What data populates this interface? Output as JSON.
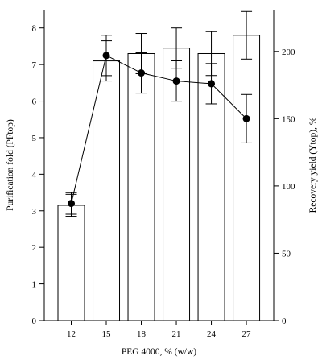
{
  "chart_data": {
    "type": "bar",
    "xlabel": "PEG 4000, % (w/w)",
    "ylabel_left": "Purification fold (PFtop)",
    "ylabel_right": "Recovery yield (Ytop), %",
    "categories": [
      "12",
      "15",
      "18",
      "21",
      "24",
      "27"
    ],
    "left_axis": {
      "ylim": [
        0,
        8.5
      ],
      "ticks": [
        0,
        1,
        2,
        3,
        4,
        5,
        6,
        7,
        8
      ]
    },
    "right_axis": {
      "ylim": [
        0,
        231
      ],
      "ticks": [
        0,
        50,
        100,
        150,
        200
      ]
    },
    "grid": false,
    "legend": "none",
    "series": [
      {
        "kind": "bar",
        "axis": "left",
        "values": [
          3.15,
          7.1,
          7.3,
          7.45,
          7.3,
          7.8
        ],
        "error": [
          0.3,
          0.55,
          0.55,
          0.55,
          0.6,
          0.65
        ]
      },
      {
        "kind": "line",
        "axis": "right",
        "values": [
          87,
          197,
          184,
          178,
          176,
          150
        ],
        "error": [
          8,
          15,
          15,
          15,
          15,
          18
        ]
      }
    ]
  }
}
